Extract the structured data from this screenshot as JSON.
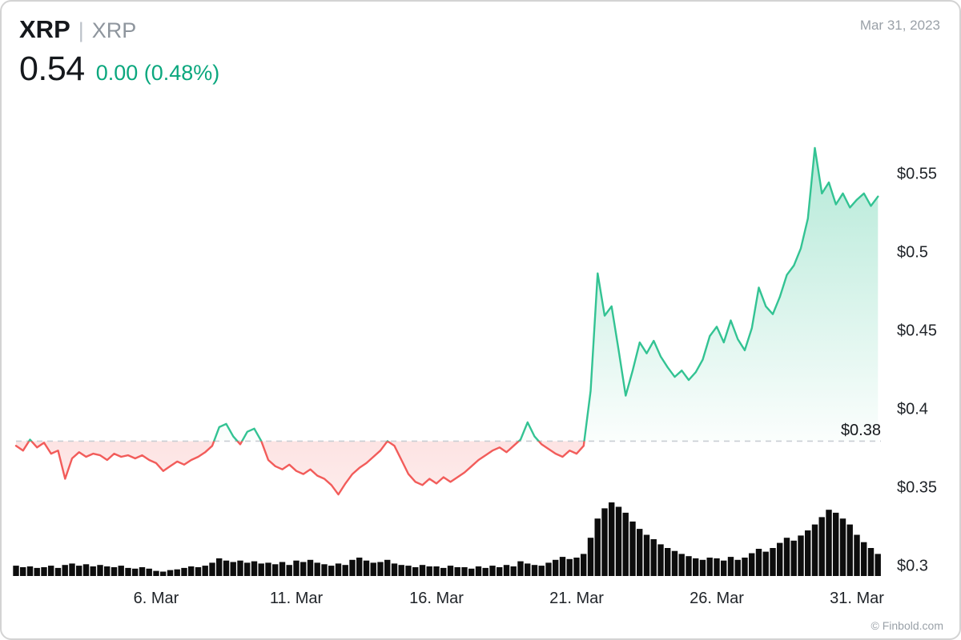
{
  "window": {
    "date": "Mar 31, 2023",
    "credit": "© Finbold.com"
  },
  "header": {
    "symbol": "XRP",
    "separator": "|",
    "pair": "XRP",
    "price": "0.54",
    "change": "0.00 (0.48%)"
  },
  "chart_data": {
    "type": "line",
    "x_unit": "day of March 2023",
    "xlim": [
      1,
      32
    ],
    "ylim": [
      0.294,
      0.594
    ],
    "grid": "off",
    "legend": "none",
    "baseline": {
      "value": 0.38,
      "label": "$0.38"
    },
    "y_ticks": [
      {
        "value": 0.55,
        "label": "$0.55"
      },
      {
        "value": 0.5,
        "label": "$0.5"
      },
      {
        "value": 0.45,
        "label": "$0.45"
      },
      {
        "value": 0.4,
        "label": "$0.4"
      },
      {
        "value": 0.35,
        "label": "$0.35"
      },
      {
        "value": 0.3,
        "label": "$0.3"
      }
    ],
    "x_ticks": [
      {
        "value": 6,
        "label": "6. Mar"
      },
      {
        "value": 11,
        "label": "11. Mar"
      },
      {
        "value": 16,
        "label": "16. Mar"
      },
      {
        "value": 21,
        "label": "21. Mar"
      },
      {
        "value": 26,
        "label": "26. Mar"
      },
      {
        "value": 31,
        "label": "31. Mar"
      }
    ],
    "x": [
      1,
      1.25,
      1.5,
      1.75,
      2,
      2.25,
      2.5,
      2.75,
      3,
      3.25,
      3.5,
      3.75,
      4,
      4.25,
      4.5,
      4.75,
      5,
      5.25,
      5.5,
      5.75,
      6,
      6.25,
      6.5,
      6.75,
      7,
      7.25,
      7.5,
      7.75,
      8,
      8.25,
      8.5,
      8.75,
      9,
      9.25,
      9.5,
      9.75,
      10,
      10.25,
      10.5,
      10.75,
      11,
      11.25,
      11.5,
      11.75,
      12,
      12.25,
      12.5,
      12.75,
      13,
      13.25,
      13.5,
      13.75,
      14,
      14.25,
      14.5,
      14.75,
      15,
      15.25,
      15.5,
      15.75,
      16,
      16.25,
      16.5,
      16.75,
      17,
      17.25,
      17.5,
      17.75,
      18,
      18.25,
      18.5,
      18.75,
      19,
      19.25,
      19.5,
      19.75,
      20,
      20.25,
      20.5,
      20.75,
      21,
      21.25,
      21.5,
      21.75,
      22,
      22.25,
      22.5,
      22.75,
      23,
      23.25,
      23.5,
      23.75,
      24,
      24.25,
      24.5,
      24.75,
      25,
      25.25,
      25.5,
      25.75,
      26,
      26.25,
      26.5,
      26.75,
      27,
      27.25,
      27.5,
      27.75,
      28,
      28.25,
      28.5,
      28.75,
      29,
      29.25,
      29.5,
      29.75,
      30,
      30.25,
      30.5,
      30.75,
      31,
      31.25,
      31.5,
      31.75
    ],
    "price": [
      0.377,
      0.374,
      0.381,
      0.376,
      0.379,
      0.372,
      0.374,
      0.356,
      0.369,
      0.373,
      0.37,
      0.372,
      0.371,
      0.368,
      0.372,
      0.37,
      0.371,
      0.369,
      0.371,
      0.368,
      0.366,
      0.361,
      0.364,
      0.367,
      0.365,
      0.368,
      0.37,
      0.373,
      0.377,
      0.389,
      0.391,
      0.383,
      0.378,
      0.386,
      0.388,
      0.38,
      0.368,
      0.364,
      0.362,
      0.365,
      0.361,
      0.359,
      0.362,
      0.358,
      0.356,
      0.352,
      0.346,
      0.353,
      0.359,
      0.363,
      0.366,
      0.37,
      0.374,
      0.38,
      0.377,
      0.368,
      0.359,
      0.354,
      0.352,
      0.356,
      0.353,
      0.357,
      0.354,
      0.357,
      0.36,
      0.364,
      0.368,
      0.371,
      0.374,
      0.376,
      0.373,
      0.377,
      0.381,
      0.392,
      0.383,
      0.378,
      0.375,
      0.372,
      0.37,
      0.374,
      0.372,
      0.377,
      0.412,
      0.487,
      0.46,
      0.466,
      0.438,
      0.409,
      0.425,
      0.443,
      0.436,
      0.444,
      0.434,
      0.427,
      0.421,
      0.425,
      0.419,
      0.424,
      0.432,
      0.447,
      0.453,
      0.443,
      0.457,
      0.445,
      0.438,
      0.452,
      0.478,
      0.466,
      0.461,
      0.472,
      0.486,
      0.492,
      0.503,
      0.522,
      0.567,
      0.538,
      0.545,
      0.531,
      0.538,
      0.529,
      0.534,
      0.538,
      0.53,
      0.536
    ],
    "volume": [
      0.14,
      0.12,
      0.13,
      0.11,
      0.12,
      0.14,
      0.11,
      0.15,
      0.17,
      0.14,
      0.16,
      0.13,
      0.15,
      0.13,
      0.12,
      0.14,
      0.11,
      0.1,
      0.12,
      0.1,
      0.07,
      0.06,
      0.08,
      0.09,
      0.11,
      0.13,
      0.12,
      0.14,
      0.18,
      0.24,
      0.21,
      0.19,
      0.21,
      0.18,
      0.2,
      0.17,
      0.18,
      0.16,
      0.19,
      0.15,
      0.21,
      0.19,
      0.22,
      0.18,
      0.16,
      0.14,
      0.17,
      0.15,
      0.22,
      0.25,
      0.21,
      0.18,
      0.19,
      0.22,
      0.17,
      0.15,
      0.14,
      0.12,
      0.15,
      0.13,
      0.13,
      0.11,
      0.14,
      0.12,
      0.12,
      0.1,
      0.13,
      0.11,
      0.14,
      0.12,
      0.15,
      0.13,
      0.2,
      0.17,
      0.15,
      0.14,
      0.18,
      0.22,
      0.26,
      0.23,
      0.25,
      0.3,
      0.52,
      0.78,
      0.92,
      1.0,
      0.94,
      0.86,
      0.74,
      0.64,
      0.56,
      0.5,
      0.43,
      0.38,
      0.34,
      0.3,
      0.27,
      0.24,
      0.22,
      0.25,
      0.24,
      0.21,
      0.26,
      0.22,
      0.25,
      0.31,
      0.37,
      0.33,
      0.38,
      0.45,
      0.52,
      0.48,
      0.55,
      0.62,
      0.7,
      0.8,
      0.9,
      0.86,
      0.78,
      0.7,
      0.56,
      0.46,
      0.38,
      0.3
    ],
    "colors": {
      "up": "#33c393",
      "down": "#f25c5a",
      "change_text": "#0ba77e",
      "volume": "#0d0d0d",
      "baseline": "#c9ced4"
    }
  }
}
